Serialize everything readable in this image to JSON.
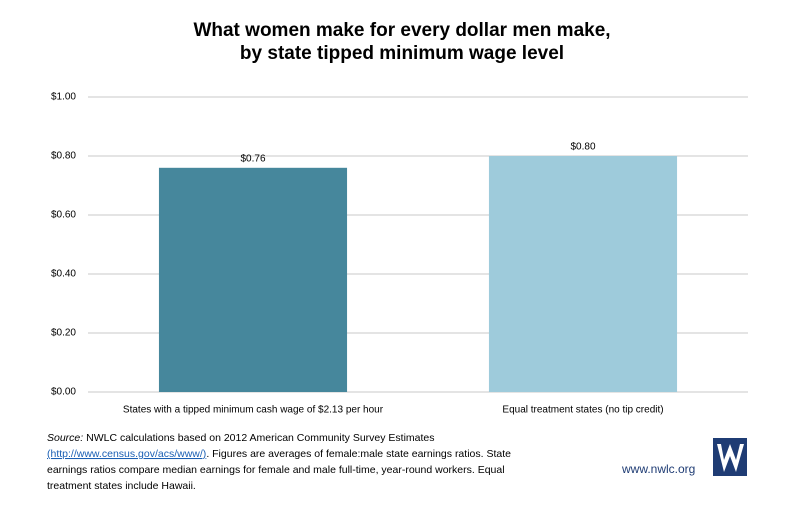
{
  "chart_data": {
    "type": "bar",
    "title": [
      "What women make for every dollar men make,",
      "by state tipped minimum wage level"
    ],
    "categories": [
      "States with a tipped minimum cash wage of $2.13 per hour",
      "Equal treatment states (no tip credit)"
    ],
    "values": [
      0.76,
      0.8
    ],
    "value_labels": [
      "$0.76",
      "$0.80"
    ],
    "colors": [
      "#46879c",
      "#9ecbdb"
    ],
    "ylim": [
      0,
      1
    ],
    "yticks": [
      {
        "value": 0,
        "label": "$0.00"
      },
      {
        "value": 0.2,
        "label": "$0.20"
      },
      {
        "value": 0.4,
        "label": "$0.40"
      },
      {
        "value": 0.6,
        "label": "$0.60"
      },
      {
        "value": 0.8,
        "label": "$0.80"
      },
      {
        "value": 1,
        "label": "$1.00"
      }
    ],
    "grid": true
  },
  "note": {
    "label": "Source:",
    "line1": "NWLC  calculations  based on 2012 American Community Survey Estimates",
    "url": "(http://www.census.gov/acs/www/)",
    "line2_rest": ". Figures are averages of female:male state earnings ratios.  State",
    "line3": "earnings  ratios compare median earnings for female and male full-time, year-round workers. Equal",
    "line4": "treatment states include Hawaii."
  },
  "website": "www.nwlc.org"
}
